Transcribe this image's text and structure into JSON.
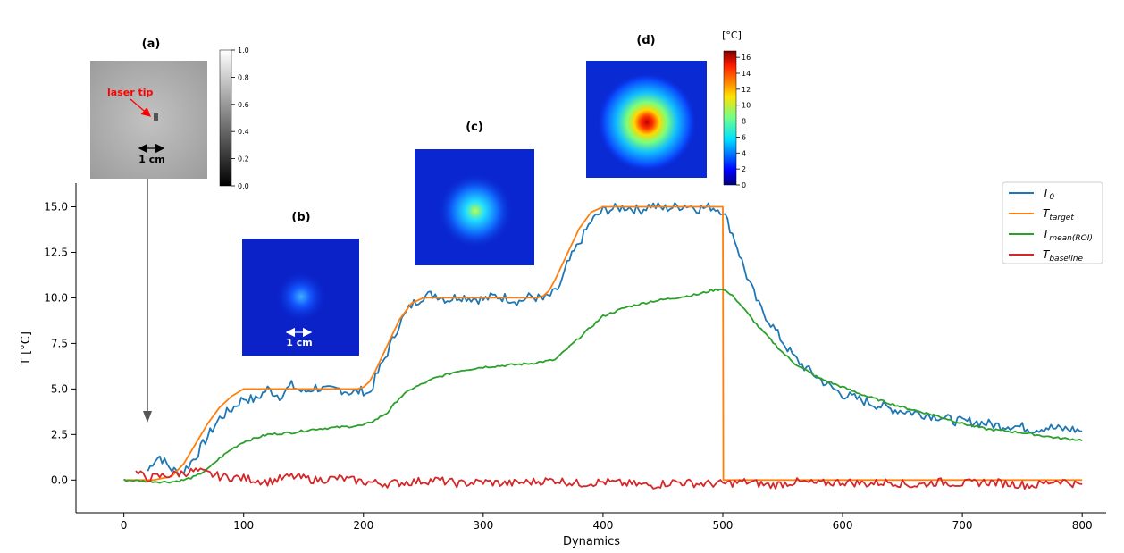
{
  "chart_data": {
    "type": "line",
    "title": "",
    "xlabel": "Dynamics",
    "ylabel": "T [°C]",
    "xlim": [
      -40,
      820
    ],
    "ylim": [
      -1.8,
      16.3
    ],
    "xticks": [
      0,
      100,
      200,
      300,
      400,
      500,
      600,
      700,
      800
    ],
    "xtick_labels": [
      "0",
      "100",
      "200",
      "300",
      "400",
      "500",
      "600",
      "700",
      "800"
    ],
    "yticks": [
      0.0,
      2.5,
      5.0,
      7.5,
      10.0,
      12.5,
      15.0
    ],
    "ytick_labels": [
      "0.0",
      "2.5",
      "5.0",
      "7.5",
      "10.0",
      "12.5",
      "15.0"
    ],
    "grid": false,
    "legend_position": "top-right",
    "series": [
      {
        "name": "T0",
        "legend_label": "T",
        "legend_sub": "0",
        "color": "#1f77b4",
        "x": [
          20,
          25,
          30,
          35,
          40,
          45,
          50,
          60,
          70,
          80,
          90,
          100,
          110,
          120,
          130,
          140,
          150,
          160,
          170,
          180,
          190,
          200,
          205,
          210,
          220,
          230,
          240,
          250,
          260,
          270,
          280,
          290,
          300,
          310,
          320,
          330,
          340,
          350,
          360,
          365,
          370,
          380,
          390,
          400,
          410,
          420,
          430,
          440,
          450,
          460,
          470,
          480,
          490,
          500,
          510,
          520,
          530,
          540,
          550,
          560,
          570,
          580,
          590,
          600,
          610,
          620,
          630,
          640,
          650,
          660,
          670,
          680,
          690,
          700,
          710,
          720,
          730,
          740,
          750,
          760,
          770,
          780,
          790,
          800
        ],
        "y": [
          0.5,
          1.1,
          1.3,
          0.9,
          0.6,
          0.4,
          0.5,
          1.3,
          2.4,
          3.4,
          3.9,
          4.5,
          4.4,
          5.0,
          4.6,
          5.2,
          4.8,
          5.1,
          4.9,
          5.0,
          4.8,
          4.9,
          4.7,
          5.6,
          7.0,
          8.6,
          9.6,
          10.1,
          10.2,
          9.9,
          10.1,
          10.0,
          9.9,
          10.1,
          10.0,
          9.8,
          10.1,
          9.9,
          10.3,
          10.8,
          11.8,
          13.0,
          14.2,
          14.8,
          14.9,
          15.0,
          14.8,
          15.1,
          14.9,
          15.0,
          15.1,
          14.9,
          15.0,
          14.8,
          13.2,
          11.2,
          9.6,
          8.6,
          7.6,
          6.7,
          6.1,
          5.6,
          5.1,
          4.7,
          4.5,
          4.3,
          4.1,
          3.9,
          3.8,
          3.7,
          3.6,
          3.5,
          3.3,
          3.2,
          3.2,
          3.1,
          3.0,
          3.0,
          2.9,
          2.8,
          2.9,
          2.8,
          2.8,
          2.7
        ]
      },
      {
        "name": "Ttarget",
        "legend_label": "T",
        "legend_sub": "target",
        "color": "#ff7f0e",
        "x": [
          0,
          25,
          40,
          50,
          60,
          70,
          80,
          90,
          100,
          195,
          200,
          205,
          210,
          220,
          230,
          240,
          250,
          345,
          350,
          355,
          360,
          370,
          380,
          390,
          400,
          500,
          500.5,
          800
        ],
        "y": [
          0,
          0,
          0.2,
          0.9,
          2.0,
          3.1,
          4.0,
          4.6,
          5.0,
          5.0,
          5.1,
          5.4,
          6.0,
          7.4,
          8.8,
          9.7,
          10.0,
          10.0,
          10.1,
          10.4,
          11.0,
          12.4,
          13.8,
          14.7,
          15.0,
          15.0,
          0,
          0
        ]
      },
      {
        "name": "Tmean(ROI)",
        "legend_label": "T",
        "legend_sub": "mean(ROI)",
        "color": "#2ca02c",
        "x": [
          0,
          30,
          40,
          50,
          60,
          70,
          80,
          90,
          100,
          120,
          140,
          160,
          180,
          200,
          210,
          220,
          230,
          240,
          250,
          260,
          280,
          300,
          320,
          340,
          350,
          360,
          370,
          380,
          390,
          400,
          420,
          440,
          460,
          480,
          490,
          500,
          510,
          520,
          530,
          540,
          550,
          560,
          580,
          600,
          620,
          650,
          680,
          700,
          720,
          750,
          780,
          800
        ],
        "y": [
          0,
          -0.1,
          -0.1,
          0,
          0.2,
          0.6,
          1.2,
          1.7,
          2.1,
          2.5,
          2.6,
          2.8,
          2.9,
          3.0,
          3.3,
          3.7,
          4.5,
          5.0,
          5.3,
          5.6,
          6.0,
          6.2,
          6.3,
          6.4,
          6.5,
          6.6,
          7.2,
          7.8,
          8.4,
          9.0,
          9.5,
          9.8,
          10.0,
          10.2,
          10.4,
          10.5,
          10.0,
          9.2,
          8.4,
          7.7,
          7.0,
          6.4,
          5.6,
          5.1,
          4.6,
          4.0,
          3.5,
          3.1,
          2.8,
          2.6,
          2.3,
          2.2
        ]
      },
      {
        "name": "Tbaseline",
        "legend_label": "T",
        "legend_sub": "baseline",
        "color": "#d62728",
        "x": [
          10,
          20,
          40,
          60,
          80,
          100,
          120,
          140,
          160,
          180,
          200,
          220,
          240,
          260,
          280,
          300,
          320,
          340,
          360,
          380,
          400,
          420,
          440,
          460,
          480,
          500,
          520,
          540,
          560,
          580,
          600,
          620,
          640,
          660,
          680,
          700,
          720,
          740,
          760,
          780,
          800
        ],
        "y": [
          0.4,
          0.1,
          0.3,
          0.5,
          0.2,
          0.1,
          -0.1,
          0.2,
          0.0,
          0.1,
          -0.1,
          -0.2,
          -0.1,
          0.0,
          -0.2,
          -0.1,
          -0.2,
          -0.1,
          0.0,
          -0.2,
          -0.1,
          -0.2,
          -0.3,
          -0.1,
          -0.2,
          -0.2,
          -0.1,
          -0.3,
          -0.1,
          -0.2,
          -0.1,
          -0.2,
          -0.1,
          -0.3,
          -0.1,
          -0.2,
          -0.1,
          -0.2,
          -0.3,
          0.0,
          -0.3
        ]
      }
    ],
    "annotations": {
      "panel_a_label": "(a)",
      "panel_b_label": "(b)",
      "panel_c_label": "(c)",
      "panel_d_label": "(d)",
      "laser_tip": "laser tip",
      "scale_a": "1 cm",
      "scale_b": "1 cm",
      "arrow_target_x": 22,
      "gray_colorbar_ticks": [
        "1.0",
        "0.8",
        "0.6",
        "0.4",
        "0.2",
        "0.0"
      ],
      "temp_colorbar_unit": "[°C]",
      "temp_colorbar_ticks": [
        "16",
        "14",
        "12",
        "10",
        "8",
        "6",
        "4",
        "2",
        "0"
      ]
    }
  }
}
